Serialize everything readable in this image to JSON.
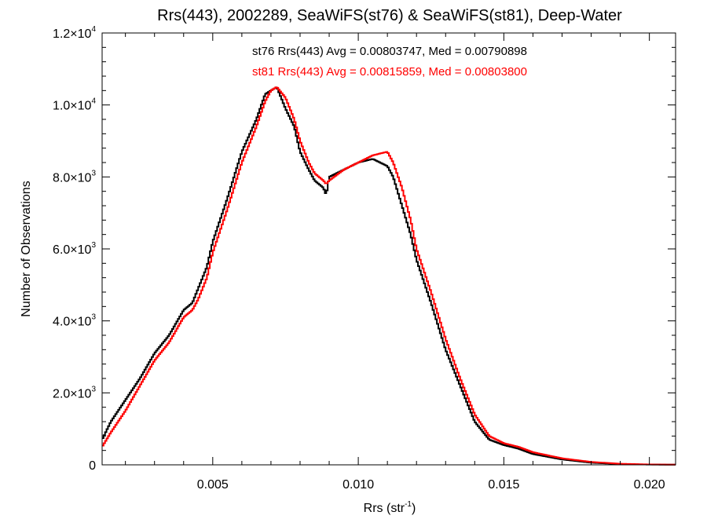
{
  "chart_data": {
    "type": "line",
    "title": "Rrs(443), 2002289, SeaWiFS(st76) & SeaWiFS(st81), Deep-Water",
    "xlabel_main": "Rrs (str",
    "xlabel_sup": "-1",
    "xlabel_close": ")",
    "ylabel": "Number of Observations",
    "xlim": [
      0.0012,
      0.0209
    ],
    "ylim": [
      0,
      12000
    ],
    "x_ticks": [
      {
        "value": 0.005,
        "label": "0.005"
      },
      {
        "value": 0.01,
        "label": "0.010"
      },
      {
        "value": 0.015,
        "label": "0.015"
      },
      {
        "value": 0.02,
        "label": "0.020"
      }
    ],
    "y_ticks": [
      {
        "value": 0,
        "mant": "0",
        "exp": ""
      },
      {
        "value": 2000,
        "mant": "2.0×10",
        "exp": "3"
      },
      {
        "value": 4000,
        "mant": "4.0×10",
        "exp": "3"
      },
      {
        "value": 6000,
        "mant": "6.0×10",
        "exp": "3"
      },
      {
        "value": 8000,
        "mant": "8.0×10",
        "exp": "3"
      },
      {
        "value": 10000,
        "mant": "1.0×10",
        "exp": "4"
      },
      {
        "value": 12000,
        "mant": "1.2×10",
        "exp": "4"
      }
    ],
    "annotations": [
      {
        "text": "st76 Rrs(443) Avg = 0.00803747, Med = 0.00790898",
        "color": "#000000"
      },
      {
        "text": "st81 Rrs(443) Avg = 0.00815859, Med = 0.00803800",
        "color": "#ff0000"
      }
    ],
    "step": "histogram",
    "series": [
      {
        "color": "#000000",
        "x": [
          0.0012,
          0.0015,
          0.002,
          0.0025,
          0.003,
          0.0035,
          0.004,
          0.0043,
          0.0045,
          0.0048,
          0.005,
          0.0055,
          0.006,
          0.0065,
          0.0068,
          0.007,
          0.0072,
          0.0075,
          0.0078,
          0.008,
          0.0083,
          0.0085,
          0.0088,
          0.0089,
          0.009,
          0.0095,
          0.01,
          0.0105,
          0.011,
          0.0112,
          0.0115,
          0.0118,
          0.012,
          0.0125,
          0.013,
          0.0135,
          0.014,
          0.0145,
          0.015,
          0.0155,
          0.016,
          0.017,
          0.018,
          0.019,
          0.02,
          0.0209
        ],
        "y": [
          700,
          1200,
          1800,
          2400,
          3100,
          3600,
          4300,
          4500,
          4900,
          5500,
          6200,
          7400,
          8700,
          9600,
          10300,
          10400,
          10500,
          9900,
          9400,
          8700,
          8200,
          7900,
          7700,
          7500,
          8000,
          8200,
          8400,
          8500,
          8300,
          8000,
          7200,
          6400,
          5700,
          4500,
          3200,
          2200,
          1200,
          700,
          550,
          450,
          300,
          150,
          60,
          20,
          8,
          5
        ]
      },
      {
        "color": "#ff0000",
        "x": [
          0.0012,
          0.0015,
          0.002,
          0.0025,
          0.003,
          0.0035,
          0.004,
          0.0043,
          0.0045,
          0.0048,
          0.005,
          0.0055,
          0.006,
          0.0065,
          0.0068,
          0.007,
          0.0072,
          0.0075,
          0.0078,
          0.008,
          0.0083,
          0.0085,
          0.0088,
          0.0089,
          0.009,
          0.0095,
          0.01,
          0.0105,
          0.011,
          0.0112,
          0.0115,
          0.0118,
          0.012,
          0.0125,
          0.013,
          0.0135,
          0.014,
          0.0145,
          0.015,
          0.0155,
          0.016,
          0.017,
          0.018,
          0.019,
          0.02,
          0.0209
        ],
        "y": [
          500,
          900,
          1500,
          2200,
          2900,
          3400,
          4100,
          4300,
          4600,
          5200,
          5900,
          7100,
          8400,
          9400,
          10100,
          10400,
          10500,
          10200,
          9600,
          9000,
          8400,
          8100,
          7900,
          7800,
          7900,
          8200,
          8400,
          8600,
          8700,
          8400,
          7700,
          6800,
          6000,
          4800,
          3500,
          2400,
          1400,
          800,
          600,
          500,
          350,
          180,
          80,
          30,
          10,
          5
        ]
      }
    ]
  }
}
